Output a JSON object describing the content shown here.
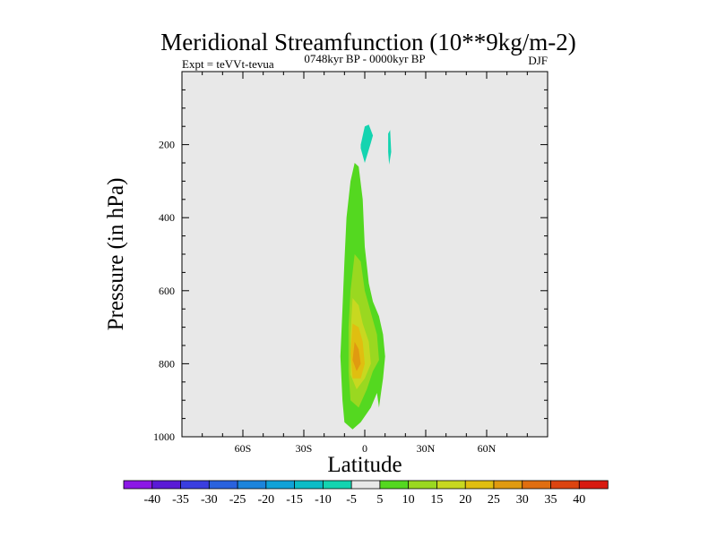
{
  "chart_data": {
    "type": "contour",
    "title": "Meridional Streamfunction (10**9kg/m-2)",
    "left_string": "Expt = teVVt-tevua",
    "center_string": "0748kyr BP - 0000kyr BP",
    "right_string": "DJF",
    "xlabel": "Latitude",
    "ylabel": "Pressure (in hPa)",
    "xlim": [
      -90,
      90
    ],
    "ylim": [
      1000,
      0
    ],
    "x_ticks": [
      {
        "value": -60,
        "label": "60S"
      },
      {
        "value": -30,
        "label": "30S"
      },
      {
        "value": 0,
        "label": "0"
      },
      {
        "value": 30,
        "label": "30N"
      },
      {
        "value": 60,
        "label": "60N"
      }
    ],
    "y_ticks": [
      {
        "value": 200,
        "label": "200"
      },
      {
        "value": 400,
        "label": "400"
      },
      {
        "value": 600,
        "label": "600"
      },
      {
        "value": 800,
        "label": "800"
      },
      {
        "value": 1000,
        "label": "1000"
      }
    ],
    "background_color": "#e8e8e8",
    "colorbar": {
      "labels": [
        "-40",
        "-35",
        "-30",
        "-25",
        "-20",
        "-15",
        "-10",
        "-5",
        "5",
        "10",
        "15",
        "20",
        "25",
        "30",
        "35",
        "40"
      ],
      "colors": [
        "#8c18e6",
        "#5a1ad6",
        "#3a3ee0",
        "#2a62de",
        "#1c84dc",
        "#10a2d8",
        "#0cbcc6",
        "#14d4b0",
        "#e8e8e8",
        "#54d820",
        "#9ad820",
        "#c8d820",
        "#e0be10",
        "#e09a10",
        "#e06e10",
        "#dc4410",
        "#d81a10"
      ]
    },
    "regions": [
      {
        "name": "negative-cell-upper",
        "level": "-10 to -5",
        "color": "#14d4b0",
        "points": [
          [
            -2,
            200
          ],
          [
            0,
            150
          ],
          [
            2,
            145
          ],
          [
            4,
            175
          ],
          [
            3,
            195
          ],
          [
            0,
            250
          ],
          [
            -2,
            210
          ]
        ]
      },
      {
        "name": "negative-cell-small",
        "level": "-10 to -5",
        "color": "#14d4b0",
        "points": [
          [
            11.5,
            170
          ],
          [
            12.5,
            160
          ],
          [
            13,
            220
          ],
          [
            12,
            255
          ],
          [
            11.5,
            220
          ]
        ]
      },
      {
        "name": "positive-cell-5-10",
        "level": "5 to 10",
        "color": "#54d820",
        "points": [
          [
            -5,
            250
          ],
          [
            -7,
            300
          ],
          [
            -9,
            400
          ],
          [
            -10,
            520
          ],
          [
            -11,
            650
          ],
          [
            -12,
            780
          ],
          [
            -11,
            900
          ],
          [
            -10,
            960
          ],
          [
            -6,
            980
          ],
          [
            -2,
            960
          ],
          [
            3,
            920
          ],
          [
            6,
            880
          ],
          [
            7,
            920
          ],
          [
            8,
            880
          ],
          [
            9,
            840
          ],
          [
            10,
            780
          ],
          [
            9,
            720
          ],
          [
            7,
            670
          ],
          [
            4,
            630
          ],
          [
            2,
            580
          ],
          [
            0,
            480
          ],
          [
            -1,
            350
          ],
          [
            -3,
            260
          ]
        ]
      },
      {
        "name": "positive-cell-10-15",
        "level": "10 to 15",
        "color": "#9ad820",
        "points": [
          [
            -5,
            500
          ],
          [
            -7,
            600
          ],
          [
            -8,
            700
          ],
          [
            -8,
            820
          ],
          [
            -7,
            900
          ],
          [
            -3,
            920
          ],
          [
            1,
            870
          ],
          [
            4,
            820
          ],
          [
            7,
            790
          ],
          [
            6,
            720
          ],
          [
            3,
            660
          ],
          [
            0,
            600
          ],
          [
            -2,
            520
          ]
        ]
      },
      {
        "name": "positive-cell-15-20",
        "level": "15 to 20",
        "color": "#c8d820",
        "points": [
          [
            -6,
            620
          ],
          [
            -7,
            720
          ],
          [
            -7,
            830
          ],
          [
            -4,
            870
          ],
          [
            0,
            840
          ],
          [
            3,
            800
          ],
          [
            2,
            740
          ],
          [
            -1,
            690
          ],
          [
            -3,
            640
          ]
        ]
      },
      {
        "name": "positive-cell-20-25",
        "level": "20 to 25",
        "color": "#e0be10",
        "points": [
          [
            -6,
            690
          ],
          [
            -7,
            770
          ],
          [
            -6,
            840
          ],
          [
            -2,
            840
          ],
          [
            0,
            800
          ],
          [
            -1,
            740
          ],
          [
            -3,
            700
          ]
        ]
      },
      {
        "name": "positive-cell-25-30",
        "level": "25 to 30",
        "color": "#e09a10",
        "points": [
          [
            -5,
            740
          ],
          [
            -6,
            790
          ],
          [
            -4,
            820
          ],
          [
            -2,
            800
          ],
          [
            -3,
            760
          ]
        ]
      }
    ]
  }
}
